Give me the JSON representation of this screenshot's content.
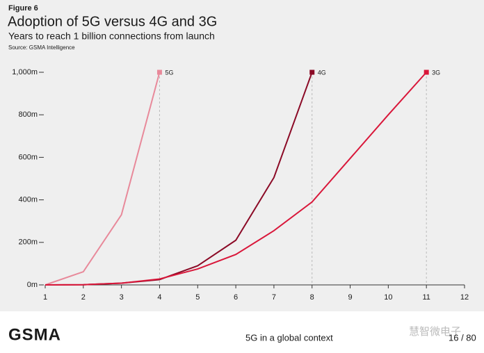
{
  "chart_data": {
    "type": "line",
    "label": "Figure 6",
    "title": "Adoption of 5G versus 4G and 3G",
    "subtitle": "Years to reach 1 billion connections from launch",
    "source": "Source: GSMA Intelligence",
    "xlim": [
      1,
      12
    ],
    "xticks": [
      1,
      2,
      3,
      4,
      5,
      6,
      7,
      8,
      9,
      10,
      11,
      12
    ],
    "ylim": [
      0,
      1000
    ],
    "yticks": [
      {
        "value": 0,
        "label": "0m"
      },
      {
        "value": 200,
        "label": "200m"
      },
      {
        "value": 400,
        "label": "400m"
      },
      {
        "value": 600,
        "label": "600m"
      },
      {
        "value": 800,
        "label": "800m"
      },
      {
        "value": 1000,
        "label": "1,000m"
      }
    ],
    "series": [
      {
        "name": "5G",
        "color": "#e8899a",
        "x": [
          1,
          2,
          3,
          4
        ],
        "values": [
          0,
          62,
          330,
          1000
        ]
      },
      {
        "name": "4G",
        "color": "#8b0a26",
        "x": [
          1,
          2,
          3,
          4,
          5,
          6,
          7,
          8
        ],
        "values": [
          0,
          1,
          8,
          25,
          90,
          210,
          505,
          1000
        ]
      },
      {
        "name": "3G",
        "color": "#d9173a",
        "x": [
          1,
          2,
          3,
          4,
          5,
          6,
          7,
          8,
          9,
          10,
          11
        ],
        "values": [
          0,
          1,
          8,
          28,
          75,
          143,
          255,
          390,
          595,
          800,
          1000
        ]
      }
    ]
  },
  "footer": {
    "logo": "GSMA",
    "section": "5G in a global context",
    "page": "16 / 80",
    "watermark": "慧智微电子"
  }
}
